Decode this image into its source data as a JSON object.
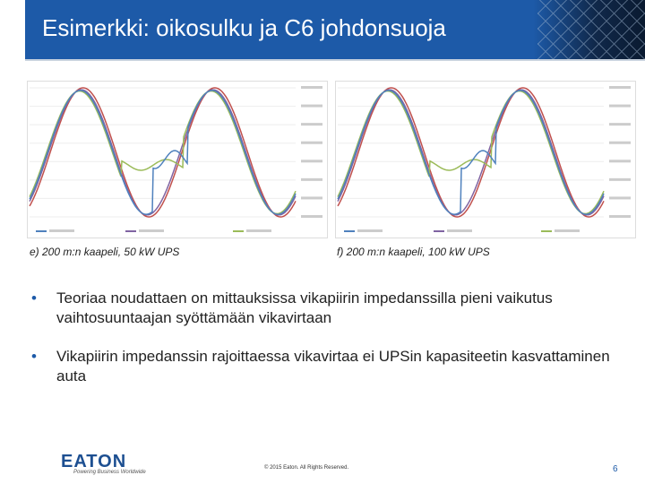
{
  "header": {
    "title": "Esimerkki: oikosulku ja C6 johdonsuoja"
  },
  "figures": [
    {
      "caption": "e) 200 m:n kaapeli, 50 kW UPS"
    },
    {
      "caption": "f) 200 m:n kaapeli, 100 kW UPS"
    }
  ],
  "bullets": [
    "Teoriaa noudattaen on mittauksissa vikapiirin impedanssilla pieni vaikutus vaihtosuuntaajan syöttämään vikavirtaan",
    "Vikapiirin impedanssin rajoittaessa vikavirtaa ei UPSin kapasiteetin kasvattaminen auta"
  ],
  "footer": {
    "logo": "EATON",
    "tagline": "Powering Business Worldwide",
    "copyright": "© 2015 Eaton. All Rights Reserved.",
    "page": "6"
  }
}
